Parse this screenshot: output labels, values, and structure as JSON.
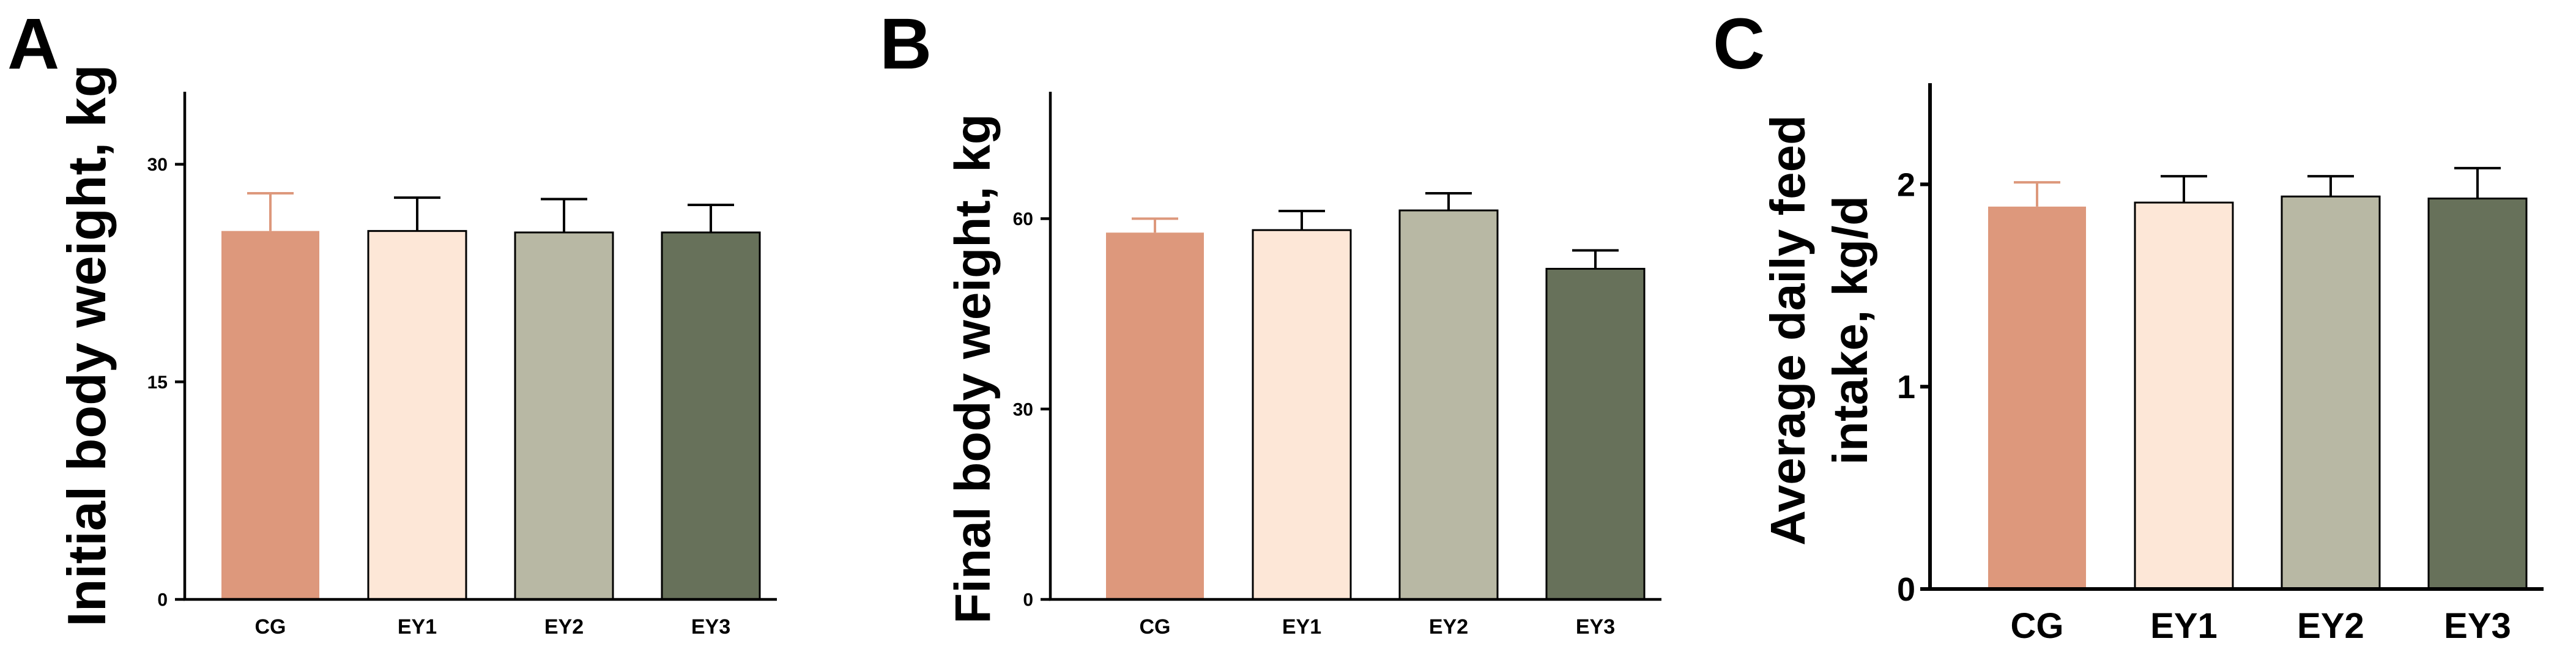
{
  "chart_data": [
    {
      "panel": "A",
      "type": "bar",
      "title": "",
      "xlabel": "",
      "ylabel": "Initial body weight, kg",
      "categories": [
        "CG",
        "EY1",
        "EY2",
        "EY3"
      ],
      "values": [
        25.4,
        25.4,
        25.3,
        25.3
      ],
      "errors": [
        2.6,
        2.3,
        2.3,
        1.9
      ],
      "ylim": [
        0,
        35
      ],
      "yticks": [
        0,
        15,
        30
      ],
      "colors": [
        "#dd987c",
        "#fde7d7",
        "#b8b8a4",
        "#67715a"
      ],
      "outlined": [
        false,
        true,
        true,
        true
      ]
    },
    {
      "panel": "B",
      "type": "bar",
      "title": "",
      "xlabel": "",
      "ylabel": "Final body weight, kg",
      "categories": [
        "CG",
        "EY1",
        "EY2",
        "EY3"
      ],
      "values": [
        57.8,
        58.2,
        61.3,
        52.1
      ],
      "errors": [
        2.2,
        3.0,
        2.7,
        2.9
      ],
      "ylim": [
        0,
        80
      ],
      "yticks": [
        0,
        30,
        60
      ],
      "colors": [
        "#dd987c",
        "#fde7d7",
        "#b8b8a4",
        "#67715a"
      ],
      "outlined": [
        false,
        true,
        true,
        true
      ]
    },
    {
      "panel": "C",
      "type": "bar",
      "title": "",
      "xlabel": "",
      "ylabel": "Average daily feed intake, kg/d",
      "ylabel_lines": [
        "Average daily feed",
        "intake, kg/d"
      ],
      "categories": [
        "CG",
        "EY1",
        "EY2",
        "EY3"
      ],
      "values": [
        1.89,
        1.91,
        1.94,
        1.93
      ],
      "errors": [
        0.12,
        0.13,
        0.1,
        0.15
      ],
      "ylim": [
        0,
        2.5
      ],
      "yticks": [
        0,
        1,
        2
      ],
      "colors": [
        "#dd987c",
        "#fde7d7",
        "#b8b8a4",
        "#67715a"
      ],
      "outlined": [
        false,
        true,
        true,
        true
      ]
    }
  ]
}
